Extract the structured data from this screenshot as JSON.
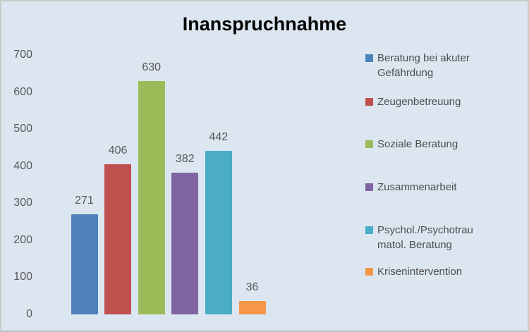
{
  "title": "Inanspruchnahme",
  "colors": {
    "background": "#dce6f1",
    "frame_border": "#c8c8c8",
    "axis_text": "#595959",
    "data_label_text": "#565656",
    "legend_text": "#4d4d4d",
    "title_text": "#000000"
  },
  "y_axis": {
    "tick_labels": [
      "0",
      "100",
      "200",
      "300",
      "400",
      "500",
      "600",
      "700"
    ]
  },
  "legend": {
    "items": [
      {
        "lines": [
          "Beratung bei akuter",
          "Gefährdung"
        ],
        "color": "#4f81bd"
      },
      {
        "lines": [
          "Zeugenbetreuung"
        ],
        "color": "#c0504d"
      },
      {
        "lines": [
          "Soziale Beratung"
        ],
        "color": "#9bbb59"
      },
      {
        "lines": [
          "Zusammenarbeit"
        ],
        "color": "#8064a2"
      },
      {
        "lines": [
          "Psychol./Psychotrau",
          "matol. Beratung"
        ],
        "color": "#4bacc6"
      },
      {
        "lines": [
          "Krisenintervention"
        ],
        "color": "#f79646"
      }
    ]
  },
  "chart_data": {
    "type": "bar",
    "title": "Inanspruchnahme",
    "categories": [
      "Beratung bei akuter Gefährdung",
      "Zeugenbetreuung",
      "Soziale Beratung",
      "Zusammenarbeit",
      "Psychol./Psychotraumatol. Beratung",
      "Krisenintervention"
    ],
    "values": [
      271,
      406,
      630,
      382,
      442,
      36
    ],
    "series_colors": [
      "#4f81bd",
      "#c0504d",
      "#9bbb59",
      "#8064a2",
      "#4bacc6",
      "#f79646"
    ],
    "data_labels": [
      "271",
      "406",
      "630",
      "382",
      "442",
      "36"
    ],
    "xlabel": "",
    "ylabel": "",
    "ylim": [
      0,
      700
    ],
    "ytick_step": 100,
    "grid": false,
    "axis_lines": false,
    "legend_position": "right"
  }
}
